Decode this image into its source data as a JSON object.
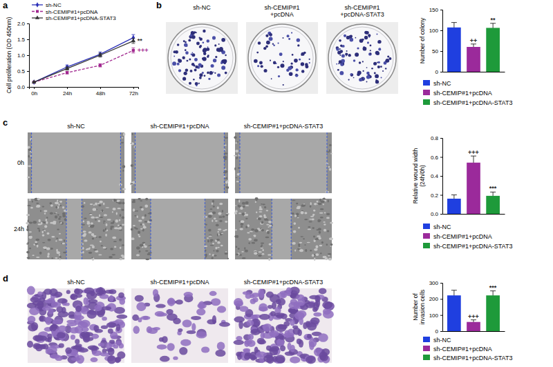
{
  "chart_data": [
    {
      "panel": "a",
      "type": "line",
      "ylabel": "Cell proliferation (OD 450nm)",
      "categories": [
        "0h",
        "24h",
        "48h",
        "72h"
      ],
      "ylim": [
        0,
        2
      ],
      "yticks": [
        {
          "value": 0,
          "label": "0.0"
        },
        {
          "value": 0.5,
          "label": "0.5"
        },
        {
          "value": 1,
          "label": "1.0"
        },
        {
          "value": 1.5,
          "label": "1.5"
        },
        {
          "value": 2,
          "label": "2.0"
        }
      ],
      "legend": "top-left",
      "series": [
        {
          "name": "sh-NC",
          "color": "#2b2fb8",
          "marker": "diamond",
          "line_style": "solid",
          "values": [
            0.15,
            0.63,
            1.03,
            1.55
          ],
          "errors": [
            0.02,
            0.06,
            0.07,
            0.1
          ]
        },
        {
          "name": "sh-CEMIP#1+pcDNA",
          "color": "#a0268e",
          "marker": "square",
          "line_style": "dashed",
          "values": [
            0.15,
            0.45,
            0.68,
            1.15
          ],
          "errors": [
            0.02,
            0.04,
            0.05,
            0.08
          ],
          "significance": [
            null,
            null,
            null,
            "+++"
          ]
        },
        {
          "name": "sh-CEMIP#1+pcDNA-STAT3",
          "color": "#333333",
          "marker": "triangle",
          "line_style": "solid",
          "values": [
            0.15,
            0.58,
            1.0,
            1.45
          ],
          "errors": [
            0.02,
            0.05,
            0.06,
            0.08
          ],
          "significance": [
            null,
            null,
            null,
            "**"
          ]
        }
      ]
    },
    {
      "panel": "b",
      "type": "bar",
      "ylabel": "Number of colony",
      "image_labels": [
        "sh-NC",
        "sh-CEMIP#1\n+pcDNA",
        "sh-CEMIP#1\n+pcDNA-STAT3"
      ],
      "categories": [
        "sh-NC",
        "sh-CEMIP#1+pcDNA",
        "sh-CEMIP#1+pcDNA-STAT3"
      ],
      "colors": [
        "#1f3fe0",
        "#9b2a9b",
        "#1e9a3a"
      ],
      "values": [
        107,
        60,
        106
      ],
      "errors": [
        12,
        7,
        11
      ],
      "significance": [
        null,
        "++",
        "**"
      ],
      "ylim": [
        0,
        150
      ],
      "yticks": [
        0,
        50,
        100,
        150
      ],
      "legend": "bottom",
      "tick_labels": "y"
    },
    {
      "panel": "c",
      "type": "bar",
      "ylabel": [
        "Relative wound width",
        "(24h/0h)"
      ],
      "image_labels": [
        "sh-NC",
        "sh-CEMIP#1+pcDNA",
        "sh-CEMIP#1+pcDNA-STAT3"
      ],
      "image_rows": [
        "0h",
        "24h"
      ],
      "categories": [
        "sh-NC",
        "sh-CEMIP#1+pcDNA",
        "sh-CEMIP#1+pcDNA-STAT3"
      ],
      "colors": [
        "#1f3fe0",
        "#9b2a9b",
        "#1e9a3a"
      ],
      "values": [
        0.16,
        0.54,
        0.19
      ],
      "errors": [
        0.04,
        0.07,
        0.04
      ],
      "significance": [
        null,
        "+++",
        "***"
      ],
      "ylim": [
        0,
        0.8
      ],
      "yticks": [
        {
          "value": 0,
          "label": "0.0"
        },
        {
          "value": 0.2,
          "label": "0.2"
        },
        {
          "value": 0.4,
          "label": "0.4"
        },
        {
          "value": 0.6,
          "label": "0.6"
        },
        {
          "value": 0.8,
          "label": "0.8"
        }
      ],
      "legend": "bottom",
      "tick_labels": "y"
    },
    {
      "panel": "d",
      "type": "bar",
      "ylabel": [
        "Number of",
        "invasion cells"
      ],
      "image_labels": [
        "sh-NC",
        "sh-CEMIP#1+pcDNA",
        "sh-CEMIP#1+pcDNA-STAT3"
      ],
      "categories": [
        "sh-NC",
        "sh-CEMIP#1+pcDNA",
        "sh-CEMIP#1+pcDNA-STAT3"
      ],
      "colors": [
        "#1f3fe0",
        "#9b2a9b",
        "#1e9a3a"
      ],
      "values": [
        222,
        57,
        222
      ],
      "errors": [
        32,
        13,
        28
      ],
      "significance": [
        null,
        "+++",
        "***"
      ],
      "ylim": [
        0,
        300
      ],
      "yticks": [
        0,
        100,
        200,
        300
      ],
      "legend": "bottom",
      "tick_labels": "y"
    }
  ]
}
